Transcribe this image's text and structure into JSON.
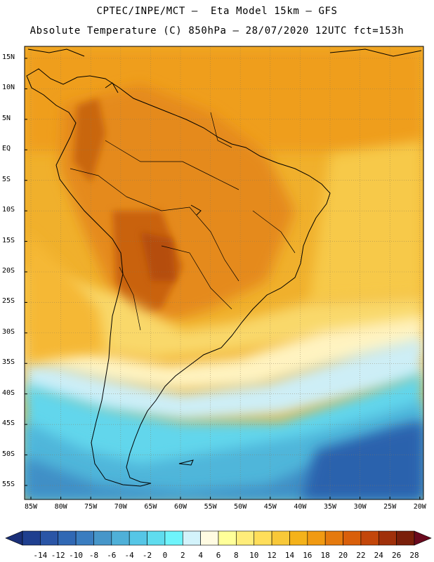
{
  "header": {
    "line1": "CPTEC/INPE/MCT –  Eta Model 15km – GFS",
    "line2": "Absolute Temperature (C) 850hPa – 28/07/2020 12UTC fct=153h"
  },
  "map": {
    "lat_labels": [
      "15N",
      "10N",
      "5N",
      "EQ",
      "5S",
      "10S",
      "15S",
      "20S",
      "25S",
      "30S",
      "35S",
      "40S",
      "45S",
      "50S",
      "55S"
    ],
    "lon_labels": [
      "85W",
      "80W",
      "75W",
      "70W",
      "65W",
      "60W",
      "55W",
      "50W",
      "45W",
      "40W",
      "35W",
      "30W",
      "25W",
      "20W"
    ]
  },
  "colorbar": {
    "labels": [
      "-14",
      "-12",
      "-10",
      "-8",
      "-6",
      "-4",
      "-2",
      "0",
      "2",
      "4",
      "6",
      "8",
      "10",
      "12",
      "14",
      "16",
      "18",
      "20",
      "22",
      "24",
      "26",
      "28"
    ],
    "colors": [
      "#1f3f8f",
      "#2a55a6",
      "#3068b4",
      "#3a7dc0",
      "#4696c9",
      "#4fb0d8",
      "#56c6e6",
      "#5fdcee",
      "#6ef4fb",
      "#d3f3fb",
      "#fffbe2",
      "#ffff99",
      "#ffed7a",
      "#ffde5a",
      "#f8c838",
      "#f4b21a",
      "#f19a12",
      "#e57a0e",
      "#d95f0a",
      "#c3460a",
      "#a0300a",
      "#7a1f0a"
    ],
    "low_arrow_color": "#1a2f78",
    "high_arrow_color": "#6a0a1e"
  }
}
